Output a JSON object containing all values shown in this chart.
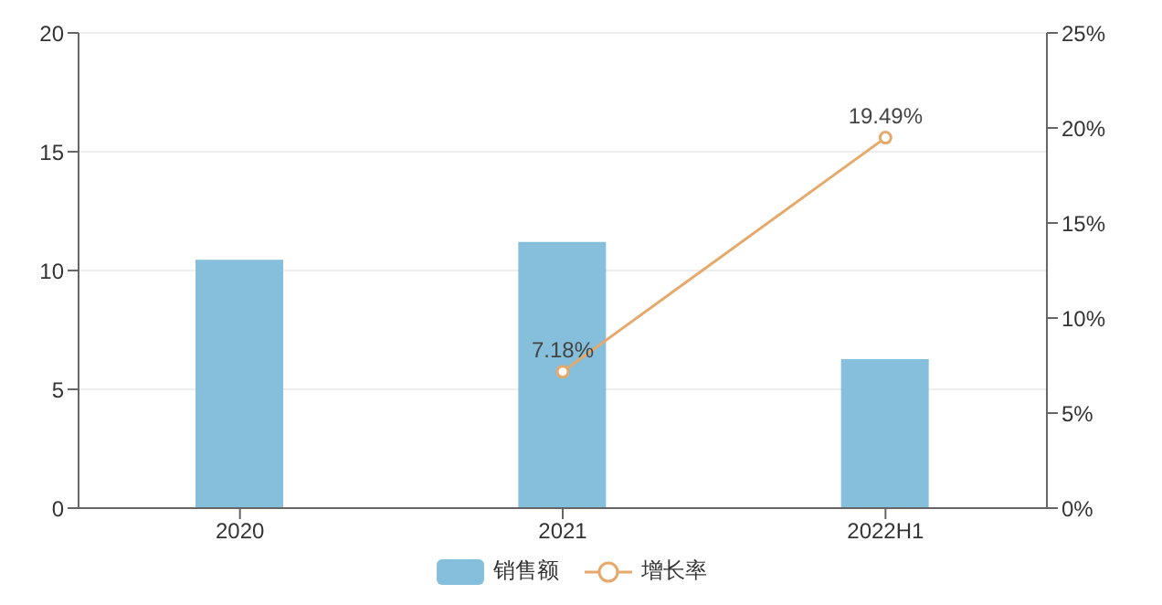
{
  "chart_data": {
    "type": "bar",
    "categories": [
      "2020",
      "2021",
      "2022H1"
    ],
    "series": [
      {
        "name": "销售额",
        "color": "#85bfdb",
        "values": [
          10.45,
          11.2,
          6.27
        ]
      },
      {
        "name": "增长率",
        "type": "line",
        "axis": "y2",
        "color": "#e5a96c",
        "values": [
          null,
          7.18,
          19.49
        ],
        "value_labels": [
          null,
          "7.18%",
          "19.49%"
        ],
        "marker": "circle"
      }
    ],
    "ylim": [
      0,
      20
    ],
    "yticks": [
      0,
      5,
      10,
      15,
      20
    ],
    "y2lim": [
      0,
      25
    ],
    "y2ticks": [
      {
        "value": 0,
        "label": "0%"
      },
      {
        "value": 5,
        "label": "5%"
      },
      {
        "value": 10,
        "label": "10%"
      },
      {
        "value": 15,
        "label": "15%"
      },
      {
        "value": 20,
        "label": "20%"
      },
      {
        "value": 25,
        "label": "25%"
      }
    ],
    "grid": "y",
    "legend": "bottom"
  }
}
